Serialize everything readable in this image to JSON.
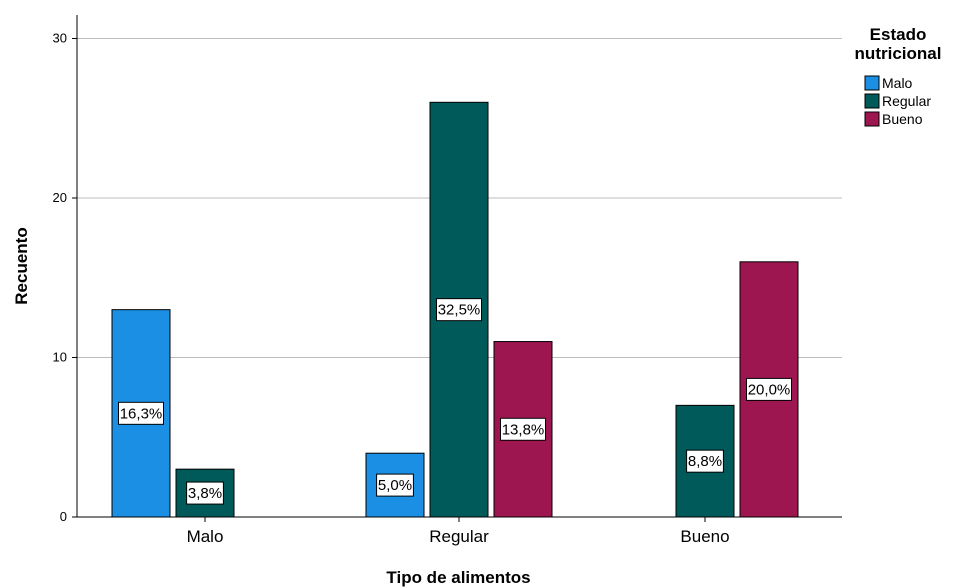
{
  "chart_data": {
    "type": "bar",
    "xlabel": "Tipo de alimentos",
    "ylabel": "Recuento",
    "ylim": [
      0,
      30
    ],
    "yticks": [
      0,
      10,
      20,
      30
    ],
    "grid": true,
    "legend": {
      "title_lines": [
        "Estado",
        "nutricional"
      ],
      "placement": "top-right"
    },
    "categories": [
      "Malo",
      "Regular",
      "Bueno"
    ],
    "series": [
      {
        "name": "Malo",
        "color": "#1a8fe3",
        "values": [
          13,
          4,
          0
        ],
        "labels": [
          "16,3%",
          "5,0%",
          ""
        ]
      },
      {
        "name": "Regular",
        "color": "#005a5a",
        "values": [
          3,
          26,
          7
        ],
        "labels": [
          "3,8%",
          "32,5%",
          "8,8%"
        ]
      },
      {
        "name": "Bueno",
        "color": "#9e1650",
        "values": [
          0,
          11,
          16
        ],
        "labels": [
          "",
          "13,8%",
          "20,0%"
        ]
      }
    ]
  }
}
